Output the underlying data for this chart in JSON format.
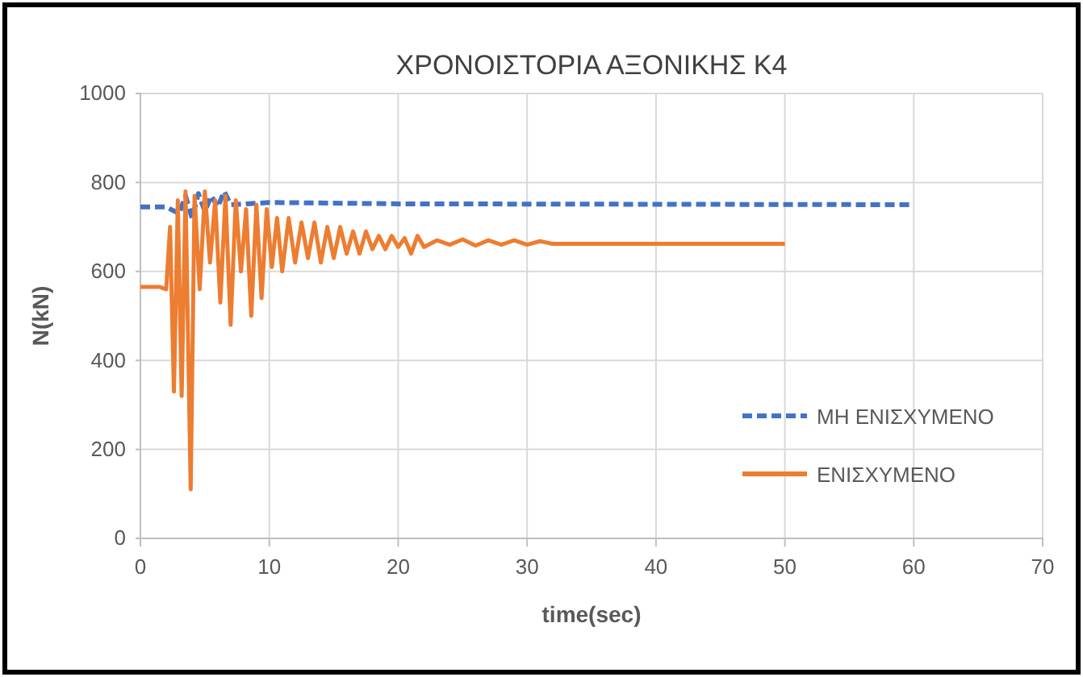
{
  "chart_data": {
    "type": "line",
    "title": "ΧΡΟΝΟΙΣΤΟΡΙΑ ΑΞΟΝΙΚΗΣ Κ4",
    "xlabel": "time(sec)",
    "ylabel": "N(kN)",
    "xlim": [
      0,
      70
    ],
    "xticks": [
      0,
      10,
      20,
      30,
      40,
      50,
      60,
      70
    ],
    "ylim": [
      0,
      1000
    ],
    "yticks": [
      0,
      200,
      400,
      600,
      800,
      1000
    ],
    "grid": true,
    "legend": "right",
    "marker": "none",
    "series": [
      {
        "name": "ΜΗ ΕΝΙΣΧΥΜΕΝΟ",
        "color": "#4472c4",
        "line_style": "dashed",
        "x": [
          0,
          2,
          3,
          3.5,
          4,
          4.5,
          5,
          5.5,
          6,
          6.5,
          7,
          10,
          20,
          60
        ],
        "values": [
          745,
          745,
          730,
          770,
          720,
          775,
          735,
          770,
          745,
          780,
          750,
          755,
          752,
          750
        ]
      },
      {
        "name": "ΕΝΙΣΧΥΜΕΝΟ",
        "color": "#ed7d31",
        "line_style": "solid",
        "x": [
          0,
          1.5,
          2,
          2.3,
          2.6,
          2.9,
          3.2,
          3.5,
          3.9,
          4.2,
          4.6,
          5,
          5.4,
          5.8,
          6.2,
          6.6,
          7,
          7.4,
          7.8,
          8.2,
          8.6,
          9,
          9.4,
          9.8,
          10.2,
          10.6,
          11,
          11.5,
          12,
          12.5,
          13,
          13.5,
          14,
          14.5,
          15,
          15.5,
          16,
          16.5,
          17,
          17.5,
          18,
          18.5,
          19,
          19.5,
          20,
          20.5,
          21,
          21.5,
          22,
          23,
          24,
          25,
          26,
          27,
          28,
          29,
          30,
          31,
          32,
          50
        ],
        "values": [
          565,
          565,
          560,
          700,
          330,
          760,
          320,
          780,
          110,
          770,
          560,
          780,
          620,
          760,
          530,
          770,
          480,
          760,
          600,
          740,
          500,
          750,
          540,
          740,
          610,
          720,
          600,
          720,
          620,
          710,
          630,
          710,
          620,
          700,
          630,
          700,
          640,
          690,
          640,
          690,
          650,
          680,
          650,
          680,
          655,
          675,
          640,
          680,
          655,
          670,
          660,
          672,
          658,
          670,
          660,
          670,
          660,
          668,
          662,
          662
        ]
      }
    ]
  }
}
